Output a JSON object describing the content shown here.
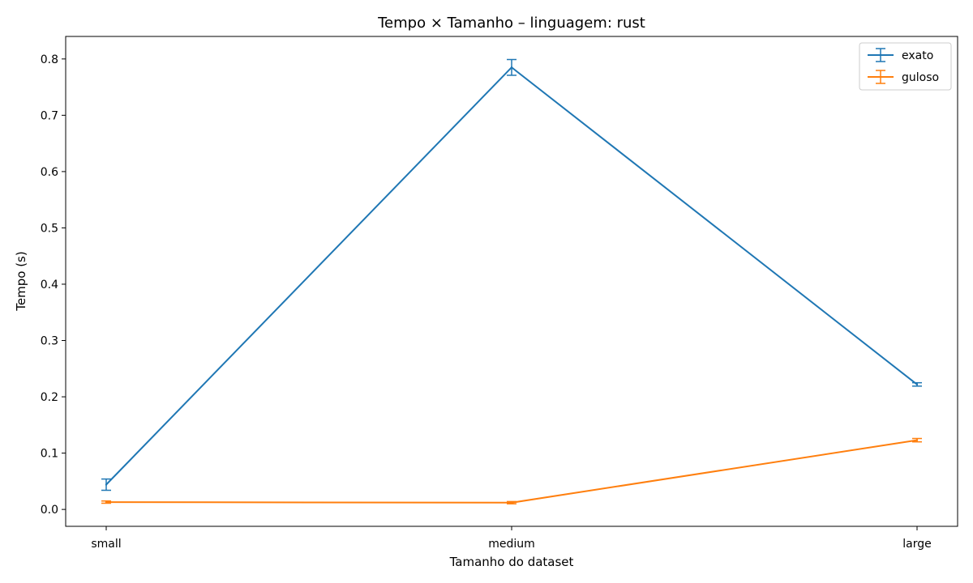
{
  "chart_data": {
    "type": "line",
    "title": "Tempo × Tamanho – linguagem: rust",
    "xlabel": "Tamanho do dataset",
    "ylabel": "Tempo (s)",
    "categories": [
      "small",
      "medium",
      "large"
    ],
    "ylim": [
      -0.03,
      0.84
    ],
    "yticks": [
      0.0,
      0.1,
      0.2,
      0.3,
      0.4,
      0.5,
      0.6,
      0.7,
      0.8
    ],
    "yticklabels": [
      "0.0",
      "0.1",
      "0.2",
      "0.3",
      "0.4",
      "0.5",
      "0.6",
      "0.7",
      "0.8"
    ],
    "grid": false,
    "legend_position": "top-right",
    "series": [
      {
        "name": "exato",
        "color": "#1f77b4",
        "values": [
          0.044,
          0.785,
          0.222
        ],
        "errors": [
          0.01,
          0.014,
          0.003
        ]
      },
      {
        "name": "guloso",
        "color": "#ff7f0e",
        "values": [
          0.013,
          0.012,
          0.123
        ],
        "errors": [
          0.002,
          0.002,
          0.003
        ]
      }
    ]
  }
}
